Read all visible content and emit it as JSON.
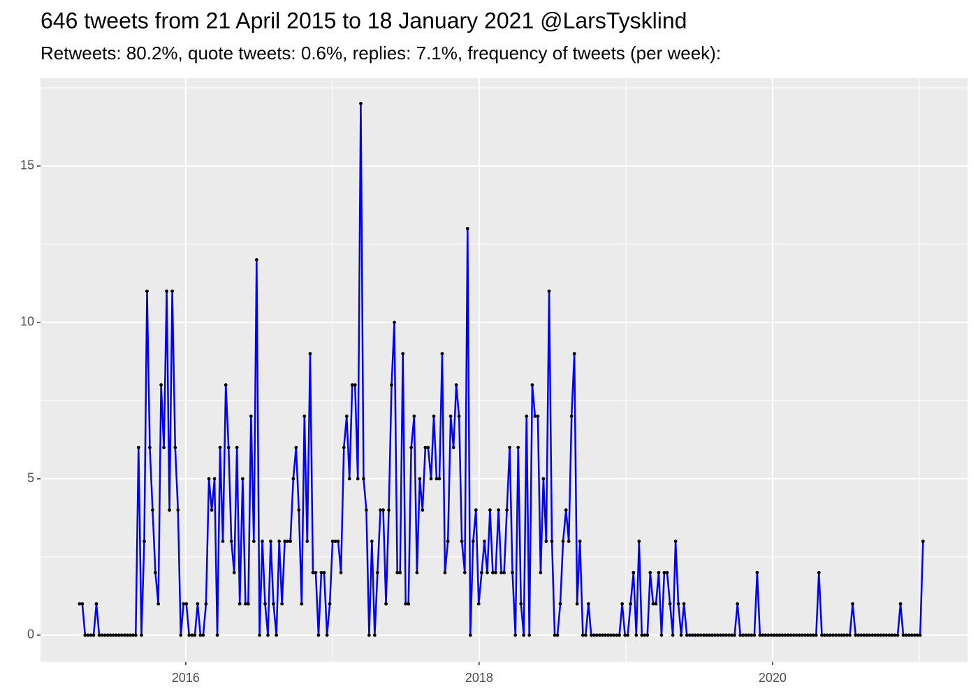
{
  "chart_data": {
    "type": "line",
    "title": "646 tweets from 21 April 2015 to 18 January 2021 @LarsTysklind",
    "subtitle": "Retweets: 80.2%, quote tweets: 0.6%, replies: 7.1%, frequency of tweets (per week):",
    "color": "#0000ff",
    "point_color": "#000000",
    "grid": true,
    "xlim": [
      2015.01,
      2021.329
    ],
    "xticks": [
      2016,
      2018,
      2020
    ],
    "ylim": [
      -0.85,
      17.81
    ],
    "yticks": [
      0,
      5,
      10,
      15
    ],
    "x": [
      2015.276,
      2015.295,
      2015.314,
      2015.333,
      2015.353,
      2015.372,
      2015.391,
      2015.41,
      2015.429,
      2015.448,
      2015.468,
      2015.487,
      2015.506,
      2015.525,
      2015.544,
      2015.563,
      2015.583,
      2015.602,
      2015.621,
      2015.64,
      2015.659,
      2015.678,
      2015.698,
      2015.717,
      2015.736,
      2015.755,
      2015.774,
      2015.793,
      2015.813,
      2015.832,
      2015.851,
      2015.87,
      2015.889,
      2015.908,
      2015.928,
      2015.947,
      2015.966,
      2015.985,
      2016.004,
      2016.023,
      2016.043,
      2016.062,
      2016.081,
      2016.1,
      2016.119,
      2016.138,
      2016.158,
      2016.177,
      2016.196,
      2016.215,
      2016.234,
      2016.253,
      2016.273,
      2016.292,
      2016.311,
      2016.33,
      2016.349,
      2016.368,
      2016.388,
      2016.407,
      2016.426,
      2016.445,
      2016.464,
      2016.483,
      2016.503,
      2016.522,
      2016.541,
      2016.56,
      2016.579,
      2016.598,
      2016.618,
      2016.637,
      2016.656,
      2016.675,
      2016.694,
      2016.713,
      2016.733,
      2016.752,
      2016.771,
      2016.79,
      2016.809,
      2016.828,
      2016.848,
      2016.867,
      2016.886,
      2016.905,
      2016.924,
      2016.943,
      2016.963,
      2016.982,
      2017.001,
      2017.02,
      2017.039,
      2017.058,
      2017.078,
      2017.097,
      2017.116,
      2017.135,
      2017.154,
      2017.173,
      2017.193,
      2017.212,
      2017.231,
      2017.25,
      2017.269,
      2017.288,
      2017.307,
      2017.327,
      2017.346,
      2017.365,
      2017.384,
      2017.403,
      2017.422,
      2017.442,
      2017.461,
      2017.48,
      2017.499,
      2017.518,
      2017.537,
      2017.557,
      2017.576,
      2017.595,
      2017.614,
      2017.633,
      2017.652,
      2017.672,
      2017.691,
      2017.71,
      2017.729,
      2017.748,
      2017.767,
      2017.787,
      2017.806,
      2017.825,
      2017.844,
      2017.863,
      2017.882,
      2017.902,
      2017.921,
      2017.94,
      2017.959,
      2017.978,
      2017.997,
      2018.017,
      2018.036,
      2018.055,
      2018.074,
      2018.093,
      2018.112,
      2018.132,
      2018.151,
      2018.17,
      2018.189,
      2018.208,
      2018.227,
      2018.247,
      2018.266,
      2018.285,
      2018.304,
      2018.323,
      2018.342,
      2018.362,
      2018.381,
      2018.4,
      2018.419,
      2018.438,
      2018.457,
      2018.477,
      2018.496,
      2018.515,
      2018.534,
      2018.553,
      2018.572,
      2018.592,
      2018.611,
      2018.63,
      2018.649,
      2018.668,
      2018.687,
      2018.707,
      2018.726,
      2018.745,
      2018.764,
      2018.783,
      2018.802,
      2018.822,
      2018.841,
      2018.86,
      2018.879,
      2018.898,
      2018.917,
      2018.937,
      2018.956,
      2018.975,
      2018.994,
      2019.013,
      2019.032,
      2019.052,
      2019.071,
      2019.09,
      2019.109,
      2019.128,
      2019.147,
      2019.166,
      2019.186,
      2019.205,
      2019.224,
      2019.243,
      2019.262,
      2019.281,
      2019.301,
      2019.32,
      2019.339,
      2019.358,
      2019.377,
      2019.396,
      2019.416,
      2019.435,
      2019.454,
      2019.473,
      2019.492,
      2019.511,
      2019.531,
      2019.55,
      2019.569,
      2019.588,
      2019.607,
      2019.626,
      2019.646,
      2019.665,
      2019.684,
      2019.703,
      2019.722,
      2019.741,
      2019.761,
      2019.78,
      2019.799,
      2019.818,
      2019.837,
      2019.856,
      2019.876,
      2019.895,
      2019.914,
      2019.933,
      2019.952,
      2019.971,
      2019.991,
      2020.01,
      2020.029,
      2020.048,
      2020.067,
      2020.086,
      2020.106,
      2020.125,
      2020.144,
      2020.163,
      2020.182,
      2020.201,
      2020.221,
      2020.24,
      2020.259,
      2020.278,
      2020.297,
      2020.316,
      2020.336,
      2020.355,
      2020.374,
      2020.393,
      2020.412,
      2020.431,
      2020.451,
      2020.47,
      2020.489,
      2020.508,
      2020.527,
      2020.546,
      2020.566,
      2020.585,
      2020.604,
      2020.623,
      2020.642,
      2020.661,
      2020.681,
      2020.7,
      2020.719,
      2020.738,
      2020.757,
      2020.776,
      2020.796,
      2020.815,
      2020.834,
      2020.853,
      2020.872,
      2020.891,
      2020.911,
      2020.93,
      2020.949,
      2020.968,
      2020.987,
      2021.006,
      2021.026
    ],
    "values": [
      1,
      1,
      0,
      0,
      0,
      0,
      1,
      0,
      0,
      0,
      0,
      0,
      0,
      0,
      0,
      0,
      0,
      0,
      0,
      0,
      0,
      6,
      0,
      3,
      11,
      6,
      4,
      2,
      1,
      8,
      6,
      11,
      4,
      11,
      6,
      4,
      0,
      1,
      1,
      0,
      0,
      0,
      1,
      0,
      0,
      1,
      5,
      4,
      5,
      0,
      6,
      3,
      8,
      6,
      3,
      2,
      6,
      1,
      5,
      1,
      1,
      7,
      3,
      12,
      0,
      3,
      1,
      0,
      3,
      1,
      0,
      3,
      1,
      3,
      3,
      3,
      5,
      6,
      4,
      1,
      7,
      3,
      9,
      2,
      2,
      0,
      2,
      2,
      0,
      1,
      3,
      3,
      3,
      2,
      6,
      7,
      5,
      8,
      8,
      5,
      17,
      5,
      4,
      0,
      3,
      0,
      2,
      4,
      4,
      1,
      4,
      8,
      10,
      2,
      2,
      9,
      1,
      1,
      6,
      7,
      2,
      5,
      4,
      6,
      6,
      5,
      7,
      5,
      5,
      9,
      2,
      3,
      7,
      6,
      8,
      7,
      3,
      2,
      13,
      0,
      3,
      4,
      1,
      2,
      3,
      2,
      4,
      2,
      2,
      4,
      2,
      2,
      4,
      6,
      2,
      0,
      6,
      1,
      0,
      7,
      0,
      8,
      7,
      7,
      2,
      5,
      3,
      11,
      3,
      0,
      0,
      1,
      3,
      4,
      3,
      7,
      9,
      1,
      3,
      0,
      0,
      1,
      0,
      0,
      0,
      0,
      0,
      0,
      0,
      0,
      0,
      0,
      0,
      1,
      0,
      0,
      1,
      2,
      0,
      3,
      0,
      0,
      0,
      2,
      1,
      1,
      2,
      0,
      2,
      2,
      1,
      0,
      3,
      1,
      0,
      1,
      0,
      0,
      0,
      0,
      0,
      0,
      0,
      0,
      0,
      0,
      0,
      0,
      0,
      0,
      0,
      0,
      0,
      0,
      1,
      0,
      0,
      0,
      0,
      0,
      0,
      2,
      0,
      0,
      0,
      0,
      0,
      0,
      0,
      0,
      0,
      0,
      0,
      0,
      0,
      0,
      0,
      0,
      0,
      0,
      0,
      0,
      0,
      2,
      0,
      0,
      0,
      0,
      0,
      0,
      0,
      0,
      0,
      0,
      0,
      1,
      0,
      0,
      0,
      0,
      0,
      0,
      0,
      0,
      0,
      0,
      0,
      0,
      0,
      0,
      0,
      0,
      1,
      0,
      0,
      0,
      0,
      0,
      0,
      0,
      3
    ]
  }
}
